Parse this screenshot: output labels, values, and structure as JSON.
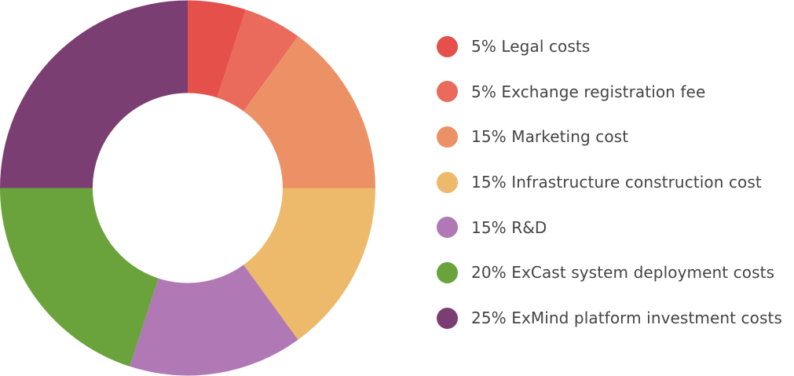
{
  "chart_data": {
    "type": "pie",
    "variant": "donut",
    "legend_position": "right",
    "slices": [
      {
        "label": "5% Legal costs",
        "value": 5,
        "color": "#e5504b"
      },
      {
        "label": "5% Exchange registration fee",
        "value": 5,
        "color": "#ea6a5c"
      },
      {
        "label": "15% Marketing cost",
        "value": 15,
        "color": "#ec9065"
      },
      {
        "label": "15% Infrastructure construction cost",
        "value": 15,
        "color": "#edb96b"
      },
      {
        "label": "15% R&D",
        "value": 15,
        "color": "#b078b4"
      },
      {
        "label": "20% ExCast system deployment costs",
        "value": 20,
        "color": "#6aa33b"
      },
      {
        "label": "25% ExMind platform investment costs",
        "value": 25,
        "color": "#7b3e72"
      }
    ]
  }
}
